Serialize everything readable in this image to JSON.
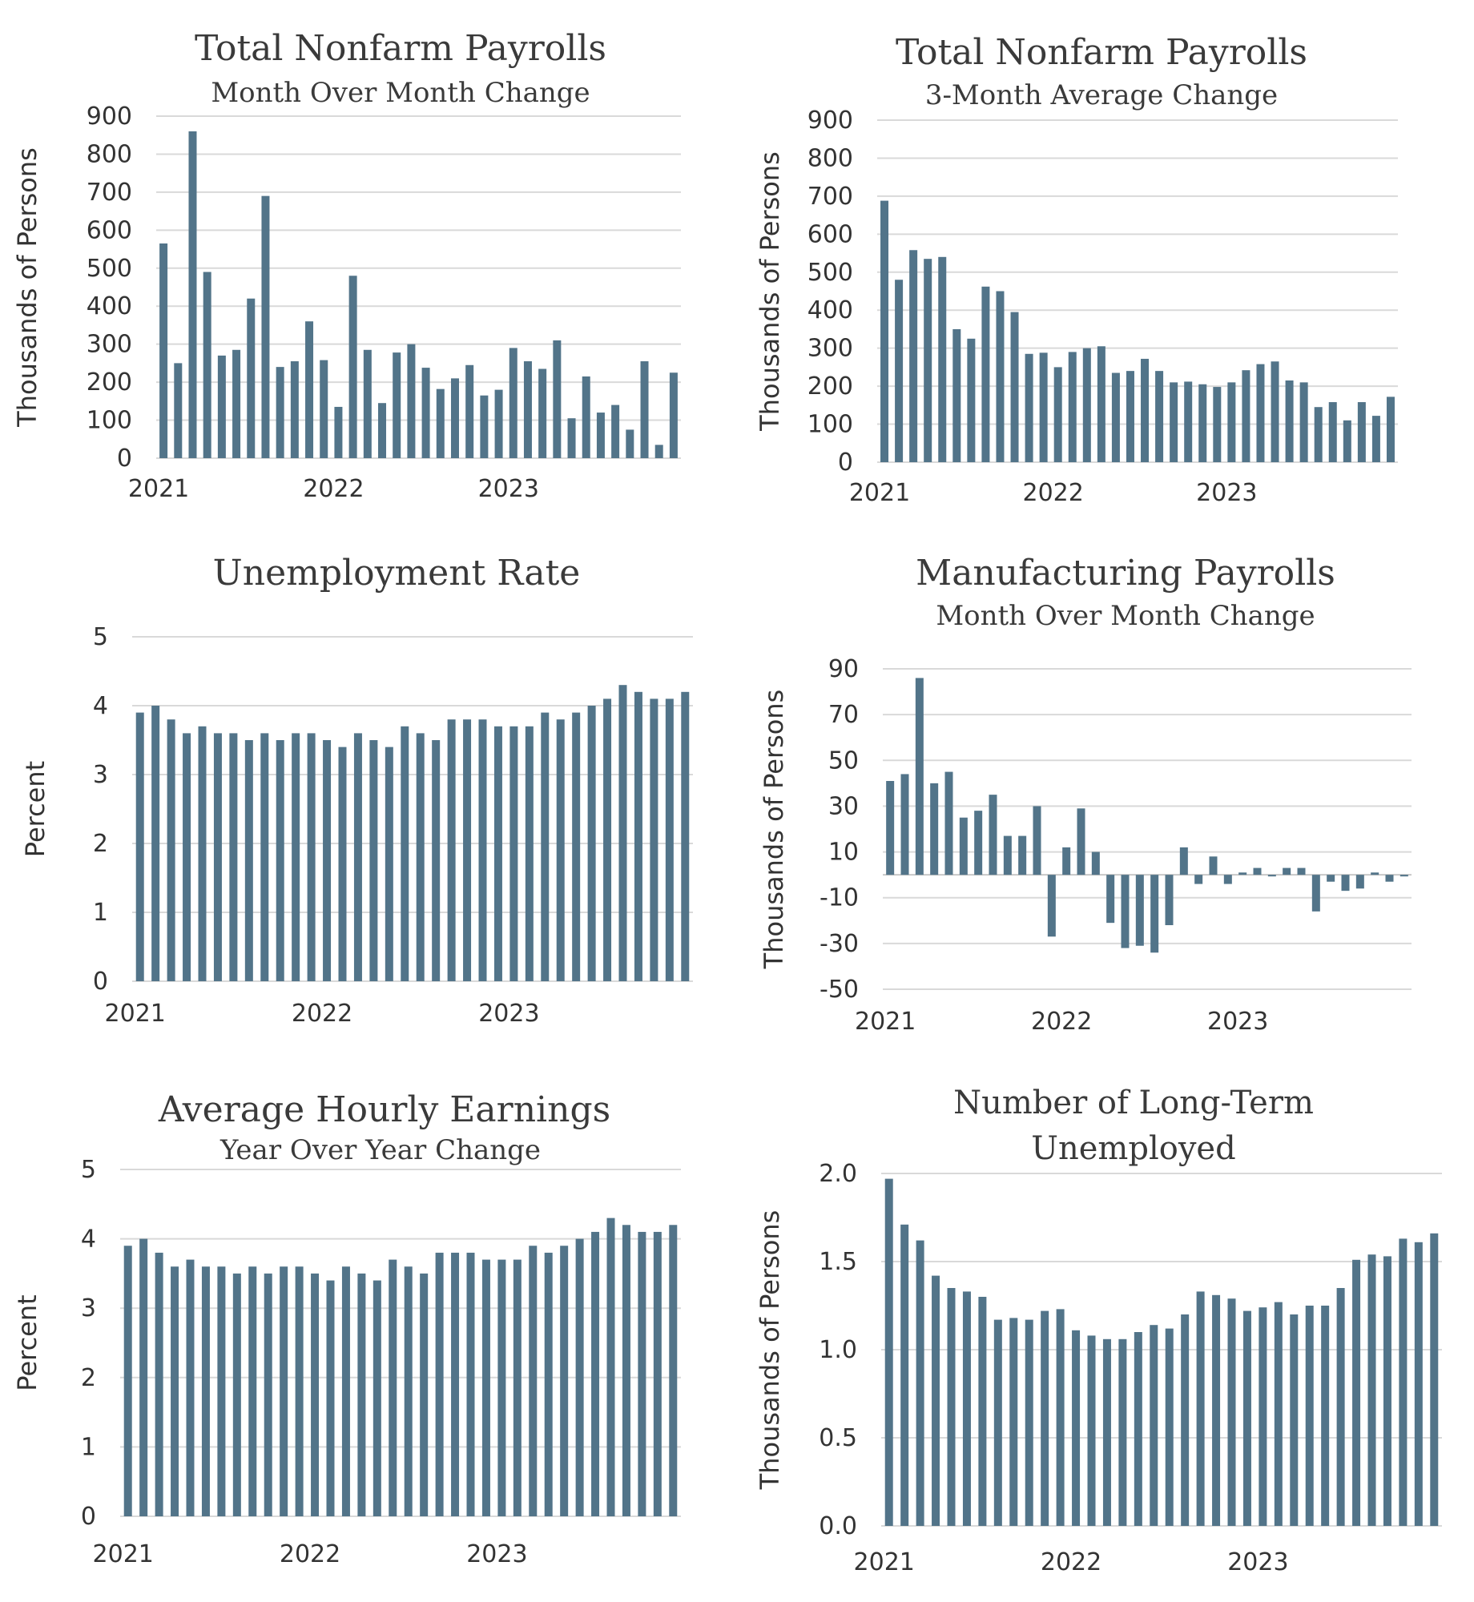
{
  "colors": {
    "bar": "#527489",
    "grid": "#d9d9d9",
    "text": "#333333"
  },
  "chart_data": [
    {
      "type": "bar",
      "title": "Total Nonfarm Payrolls",
      "subtitle": "Month Over Month Change",
      "ylabel": "Thousands of Persons",
      "ylim": [
        0,
        900
      ],
      "yticks": [
        "0",
        "100",
        "200",
        "300",
        "400",
        "500",
        "600",
        "700",
        "800",
        "900"
      ],
      "ytick_values": [
        0,
        100,
        200,
        300,
        400,
        500,
        600,
        700,
        800,
        900
      ],
      "xticks": [
        {
          "label": "2021",
          "index": 0
        },
        {
          "label": "2022",
          "index": 12
        },
        {
          "label": "2023",
          "index": 24
        }
      ],
      "values": [
        565,
        250,
        860,
        490,
        270,
        285,
        420,
        690,
        240,
        255,
        360,
        258,
        135,
        480,
        285,
        145,
        278,
        300,
        238,
        182,
        210,
        245,
        165,
        180,
        290,
        255,
        235,
        310,
        105,
        215,
        120,
        140,
        75,
        255,
        35,
        225
      ]
    },
    {
      "type": "bar",
      "title": "Total Nonfarm Payrolls",
      "subtitle": "3-Month Average Change",
      "ylabel": "Thousands of Persons",
      "ylim": [
        0,
        900
      ],
      "yticks": [
        "0",
        "100",
        "200",
        "300",
        "400",
        "500",
        "600",
        "700",
        "800",
        "900"
      ],
      "ytick_values": [
        0,
        100,
        200,
        300,
        400,
        500,
        600,
        700,
        800,
        900
      ],
      "xticks": [
        {
          "label": "2021",
          "index": 0
        },
        {
          "label": "2022",
          "index": 12
        },
        {
          "label": "2023",
          "index": 24
        }
      ],
      "values": [
        688,
        480,
        558,
        535,
        540,
        350,
        325,
        462,
        450,
        395,
        285,
        288,
        250,
        290,
        300,
        305,
        235,
        240,
        272,
        240,
        210,
        212,
        205,
        198,
        210,
        242,
        258,
        265,
        215,
        210,
        145,
        158,
        110,
        158,
        122,
        172
      ]
    },
    {
      "type": "bar",
      "title": "Unemployment Rate",
      "subtitle": "",
      "ylabel": "Percent",
      "ylim": [
        0,
        5
      ],
      "yticks": [
        "0",
        "1",
        "2",
        "3",
        "4",
        "5"
      ],
      "ytick_values": [
        0,
        1,
        2,
        3,
        4,
        5
      ],
      "xticks": [
        {
          "label": "2021",
          "index": 0
        },
        {
          "label": "2022",
          "index": 12
        },
        {
          "label": "2023",
          "index": 24
        }
      ],
      "values": [
        3.9,
        4.0,
        3.8,
        3.6,
        3.7,
        3.6,
        3.6,
        3.5,
        3.6,
        3.5,
        3.6,
        3.6,
        3.5,
        3.4,
        3.6,
        3.5,
        3.4,
        3.7,
        3.6,
        3.5,
        3.8,
        3.8,
        3.8,
        3.7,
        3.7,
        3.7,
        3.9,
        3.8,
        3.9,
        4.0,
        4.1,
        4.3,
        4.2,
        4.1,
        4.1,
        4.2
      ]
    },
    {
      "type": "bar",
      "title": "Manufacturing Payrolls",
      "subtitle": "Month Over Month Change",
      "ylabel": "Thousands of Persons",
      "ylim": [
        -50,
        90
      ],
      "yticks": [
        "-50",
        "-30",
        "-10",
        "10",
        "30",
        "50",
        "70",
        "90"
      ],
      "ytick_values": [
        -50,
        -30,
        -10,
        10,
        30,
        50,
        70,
        90
      ],
      "xticks": [
        {
          "label": "2021",
          "index": 0
        },
        {
          "label": "2022",
          "index": 12
        },
        {
          "label": "2023",
          "index": 24
        }
      ],
      "values": [
        41,
        44,
        86,
        40,
        45,
        25,
        28,
        35,
        17,
        17,
        30,
        -27,
        12,
        29,
        10,
        -21,
        -32,
        -31,
        -34,
        -22,
        12,
        -4,
        8,
        -4,
        1,
        3,
        0,
        3,
        3,
        -16,
        -3,
        -7,
        -6,
        1,
        -3,
        0
      ]
    },
    {
      "type": "bar",
      "title": "Average Hourly Earnings",
      "subtitle": "Year Over Year Change",
      "ylabel": "Percent",
      "ylim": [
        0,
        5
      ],
      "yticks": [
        "0",
        "1",
        "2",
        "3",
        "4",
        "5"
      ],
      "ytick_values": [
        0,
        1,
        2,
        3,
        4,
        5
      ],
      "xticks": [
        {
          "label": "2021",
          "index": 0
        },
        {
          "label": "2022",
          "index": 12
        },
        {
          "label": "2023",
          "index": 24
        }
      ],
      "values": [
        3.9,
        4.0,
        3.8,
        3.6,
        3.7,
        3.6,
        3.6,
        3.5,
        3.6,
        3.5,
        3.6,
        3.6,
        3.5,
        3.4,
        3.6,
        3.5,
        3.4,
        3.7,
        3.6,
        3.5,
        3.8,
        3.8,
        3.8,
        3.7,
        3.7,
        3.7,
        3.9,
        3.8,
        3.9,
        4.0,
        4.1,
        4.3,
        4.2,
        4.1,
        4.1,
        4.2
      ]
    },
    {
      "type": "bar",
      "title": "Number of Long-Term",
      "subtitle": "Unemployed",
      "ylabel": "Thousands of Persons",
      "ylim": [
        0,
        2.0
      ],
      "yticks": [
        "0.0",
        "0.5",
        "1.0",
        "1.5",
        "2.0"
      ],
      "ytick_values": [
        0,
        0.5,
        1.0,
        1.5,
        2.0
      ],
      "xticks": [
        {
          "label": "2021",
          "index": 0
        },
        {
          "label": "2022",
          "index": 12
        },
        {
          "label": "2023",
          "index": 24
        }
      ],
      "values": [
        1.97,
        1.71,
        1.62,
        1.42,
        1.35,
        1.33,
        1.3,
        1.17,
        1.18,
        1.17,
        1.22,
        1.23,
        1.11,
        1.08,
        1.06,
        1.06,
        1.1,
        1.14,
        1.12,
        1.2,
        1.33,
        1.31,
        1.29,
        1.22,
        1.24,
        1.27,
        1.2,
        1.25,
        1.25,
        1.35,
        1.51,
        1.54,
        1.53,
        1.63,
        1.61,
        1.66
      ]
    }
  ]
}
